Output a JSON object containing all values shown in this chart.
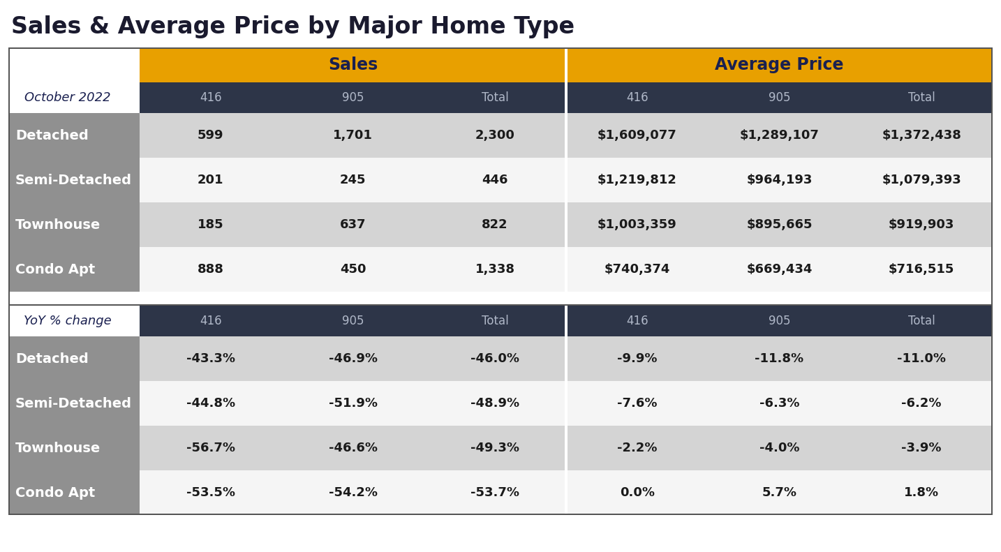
{
  "title": "Sales & Average Price by Major Home Type",
  "title_color": "#1a1a2e",
  "background_color": "#ffffff",
  "gold_color": "#E8A000",
  "dark_header_color": "#2d3548",
  "gray_label_color": "#909090",
  "light_gray_row": "#d4d4d4",
  "white_row": "#f5f5f5",
  "header_bold_color": "#1a2050",
  "subheader_text_color": "#b0b8c8",
  "data_text_color": "#1a1a1a",
  "label_text_color": "#ffffff",
  "row_labels": [
    "Detached",
    "Semi-Detached",
    "Townhouse",
    "Condo Apt"
  ],
  "oct_label": "October 2022",
  "yoy_label": "YoY % change",
  "col_subheaders": [
    "416",
    "905",
    "Total",
    "416",
    "905",
    "Total"
  ],
  "section_headers": [
    "Sales",
    "Average Price"
  ],
  "sales_data": [
    [
      "599",
      "1,701",
      "2,300"
    ],
    [
      "201",
      "245",
      "446"
    ],
    [
      "185",
      "637",
      "822"
    ],
    [
      "888",
      "450",
      "1,338"
    ]
  ],
  "price_data": [
    [
      "$1,609,077",
      "$1,289,107",
      "$1,372,438"
    ],
    [
      "$1,219,812",
      "$964,193",
      "$1,079,393"
    ],
    [
      "$1,003,359",
      "$895,665",
      "$919,903"
    ],
    [
      "$740,374",
      "$669,434",
      "$716,515"
    ]
  ],
  "yoy_sales_data": [
    [
      "-43.3%",
      "-46.9%",
      "-46.0%"
    ],
    [
      "-44.8%",
      "-51.9%",
      "-48.9%"
    ],
    [
      "-56.7%",
      "-46.6%",
      "-49.3%"
    ],
    [
      "-53.5%",
      "-54.2%",
      "-53.7%"
    ]
  ],
  "yoy_price_data": [
    [
      "-9.9%",
      "-11.8%",
      "-11.0%"
    ],
    [
      "-7.6%",
      "-6.3%",
      "-6.2%"
    ],
    [
      "-2.2%",
      "-4.0%",
      "-3.9%"
    ],
    [
      "0.0%",
      "5.7%",
      "1.8%"
    ]
  ]
}
